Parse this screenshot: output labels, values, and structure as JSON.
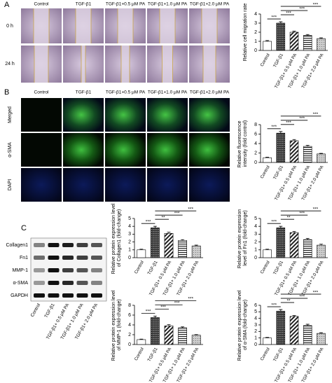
{
  "panel_a": {
    "label": "A",
    "columns": [
      "Control",
      "TGF-β1",
      "TGF-β1+0.5 μM PA",
      "TGF-β1+1.0 μM PA",
      "TGF-β1+2.0 μM PA"
    ],
    "rows": [
      "0 h",
      "24 h"
    ]
  },
  "panel_b": {
    "label": "B",
    "columns": [
      "Control",
      "TGF-β1",
      "TGF-β1+0.5 μM PA",
      "TGF-β1+1.0 μM PA",
      "TGF-β1+2.0 μM PA"
    ],
    "rows": [
      "Merged",
      "α-SMA",
      "DAPI"
    ]
  },
  "panel_c": {
    "label": "C",
    "blot_rows": [
      "Collagen1",
      "Fn1",
      "MMP-1",
      "α-SMA",
      "GAPDH"
    ],
    "blot_lanes": [
      "Control",
      "TGF-β1",
      "TGF-β1+ 0.5 μM PA",
      "TGF-β1+ 1.0 μM PA",
      "TGF-β1+ 2.0 μM PA"
    ]
  },
  "chart_data": [
    {
      "type": "bar",
      "y_label": "Relative cell migration rate",
      "categories": [
        "Control",
        "TGF-β1",
        "TGF-β1+ 0.5 μM PA",
        "TGF-β1+ 1.0 μM PA",
        "TGF-β1+ 2.0 μM PA"
      ],
      "values": [
        1.0,
        3.0,
        2.0,
        1.65,
        1.3
      ],
      "errors": [
        0.08,
        0.15,
        0.12,
        0.1,
        0.08
      ],
      "ylim": [
        0,
        4
      ],
      "yticks": [
        0,
        1,
        2,
        3,
        4
      ],
      "significance": [
        "***",
        "***",
        "***",
        "***"
      ],
      "color": "#000000"
    },
    {
      "type": "bar",
      "y_label": "Relative fluorescence intensity (fold control)",
      "categories": [
        "Control",
        "TGF-β1",
        "TGF-β1+ 0.5 μM PA",
        "TGF-β1+ 1.0 μM PA",
        "TGF-β1+ 2.0 μM PA"
      ],
      "values": [
        1.0,
        6.2,
        4.6,
        3.4,
        1.8
      ],
      "errors": [
        0.1,
        0.35,
        0.25,
        0.2,
        0.12
      ],
      "ylim": [
        0,
        8
      ],
      "yticks": [
        0,
        2,
        4,
        6,
        8
      ],
      "significance": [
        "***",
        "***",
        "***",
        "***"
      ],
      "color": "#000000"
    },
    {
      "type": "bar",
      "y_label": "Relative protein expression level of Collagen1 (fold-change)",
      "categories": [
        "Control",
        "TGF-β1",
        "TGF-β1+ 0.5 μM PA",
        "TGF-β1+ 1.0 μM PA",
        "TGF-β1+ 2.0 μM PA"
      ],
      "values": [
        1.0,
        3.8,
        3.1,
        2.2,
        1.5
      ],
      "errors": [
        0.08,
        0.2,
        0.15,
        0.1,
        0.1
      ],
      "ylim": [
        0,
        5
      ],
      "yticks": [
        0,
        1,
        2,
        3,
        4,
        5
      ],
      "significance": [
        "***",
        "**",
        "***",
        "***"
      ],
      "color": "#000000"
    },
    {
      "type": "bar",
      "y_label": "Relative protein expression level of Fn1 (fold-change)",
      "categories": [
        "Control",
        "TGF-β1",
        "TGF-β1+ 0.5 μM PA",
        "TGF-β1+ 1.0 μM PA",
        "TGF-β1+ 2.0 μM PA"
      ],
      "values": [
        1.0,
        3.8,
        3.2,
        2.3,
        1.6
      ],
      "errors": [
        0.08,
        0.2,
        0.15,
        0.15,
        0.12
      ],
      "ylim": [
        0,
        5
      ],
      "yticks": [
        0,
        1,
        2,
        3,
        4,
        5
      ],
      "significance": [
        "***",
        "**",
        "***",
        "***"
      ],
      "color": "#000000"
    },
    {
      "type": "bar",
      "y_label": "Relative protein expression level of MMP-1 (fold-change)",
      "categories": [
        "Control",
        "TGF-β1",
        "TGF-β1+ 0.5 μM PA",
        "TGF-β1+ 1.0 μM PA",
        "TGF-β1+ 2.0 μM PA"
      ],
      "values": [
        1.0,
        5.5,
        3.8,
        3.4,
        1.9
      ],
      "errors": [
        0.1,
        0.3,
        0.25,
        0.2,
        0.12
      ],
      "ylim": [
        0,
        8
      ],
      "yticks": [
        0,
        2,
        4,
        6,
        8
      ],
      "significance": [
        "***",
        "***",
        "***",
        "***"
      ],
      "color": "#000000"
    },
    {
      "type": "bar",
      "y_label": "Relative protein expression level of α-SMA (fold-change)",
      "categories": [
        "Control",
        "TGF-β1",
        "TGF-β1+ 0.5 μM PA",
        "TGF-β1+ 1.0 μM PA",
        "TGF-β1+ 2.0 μM PA"
      ],
      "values": [
        1.0,
        5.1,
        4.3,
        2.9,
        1.7
      ],
      "errors": [
        0.08,
        0.25,
        0.15,
        0.2,
        0.1
      ],
      "ylim": [
        0,
        6
      ],
      "yticks": [
        0,
        1,
        2,
        3,
        4,
        5,
        6
      ],
      "significance": [
        "***",
        "**",
        "***",
        "***"
      ],
      "color": "#000000"
    }
  ]
}
